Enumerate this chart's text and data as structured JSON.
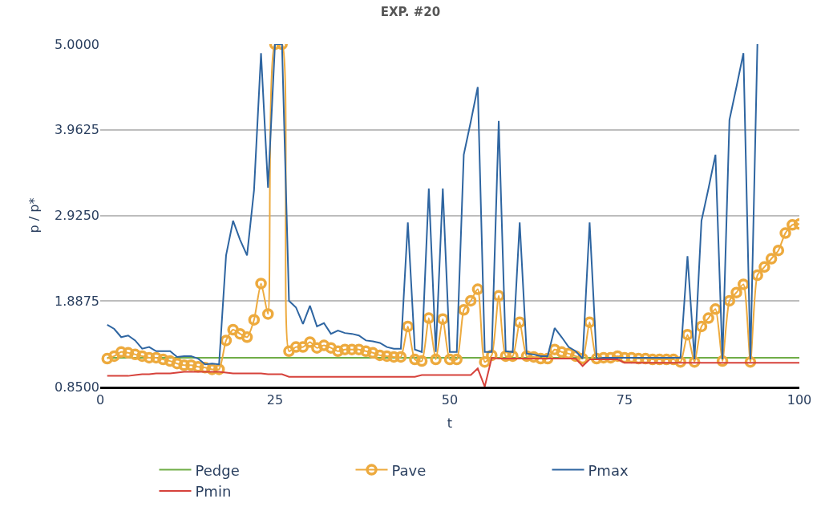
{
  "chart_data": {
    "type": "line",
    "title": "EXP. #20",
    "xlabel": "t",
    "ylabel": "p / p*",
    "x": [
      1,
      2,
      3,
      4,
      5,
      6,
      7,
      8,
      9,
      10,
      11,
      12,
      13,
      14,
      15,
      16,
      17,
      18,
      19,
      20,
      21,
      22,
      23,
      24,
      25,
      26,
      27,
      28,
      29,
      30,
      31,
      32,
      33,
      34,
      35,
      36,
      37,
      38,
      39,
      40,
      41,
      42,
      43,
      44,
      45,
      46,
      47,
      48,
      49,
      50,
      51,
      52,
      53,
      54,
      55,
      56,
      57,
      58,
      59,
      60,
      61,
      62,
      63,
      64,
      65,
      66,
      67,
      68,
      69,
      70,
      71,
      72,
      73,
      74,
      75,
      76,
      77,
      78,
      79,
      80,
      81,
      82,
      83,
      84,
      85,
      86,
      87,
      88,
      89,
      90,
      91,
      92,
      93,
      94,
      95,
      96,
      97,
      98,
      99,
      100
    ],
    "xlim": [
      0,
      100
    ],
    "xticks": [
      0,
      25,
      50,
      75,
      100
    ],
    "ylim": [
      0.85,
      5.0
    ],
    "yticks": [
      {
        "value": 0.85,
        "label": "0.8500"
      },
      {
        "value": 1.8875,
        "label": "1.8875"
      },
      {
        "value": 2.925,
        "label": "2.9250"
      },
      {
        "value": 3.9625,
        "label": "3.9625"
      },
      {
        "value": 5.0,
        "label": "5.0000"
      }
    ],
    "grid": "y",
    "legend": "bottom",
    "line_style": "solid",
    "series": [
      {
        "name": "Pedge",
        "color": "#70ad47",
        "marker": "none",
        "values": [
          1.2,
          1.2,
          1.2,
          1.2,
          1.2,
          1.2,
          1.2,
          1.2,
          1.2,
          1.2,
          1.2,
          1.2,
          1.2,
          1.2,
          1.2,
          1.2,
          1.2,
          1.2,
          1.2,
          1.2,
          1.2,
          1.2,
          1.2,
          1.2,
          1.2,
          1.2,
          1.2,
          1.2,
          1.2,
          1.2,
          1.2,
          1.2,
          1.2,
          1.2,
          1.2,
          1.2,
          1.2,
          1.2,
          1.2,
          1.2,
          1.2,
          1.2,
          1.2,
          1.2,
          1.2,
          1.2,
          1.2,
          1.2,
          1.2,
          1.2,
          1.2,
          1.2,
          1.2,
          1.2,
          1.2,
          1.2,
          1.2,
          1.2,
          1.2,
          1.2,
          1.2,
          1.2,
          1.2,
          1.2,
          1.2,
          1.2,
          1.2,
          1.2,
          1.2,
          1.2,
          1.2,
          1.2,
          1.2,
          1.2,
          1.2,
          1.2,
          1.2,
          1.2,
          1.2,
          1.2,
          1.2,
          1.2,
          1.2,
          1.2,
          1.2,
          1.2,
          1.2,
          1.2,
          1.2,
          1.2,
          1.2,
          1.2,
          1.2,
          1.2,
          1.2,
          1.2,
          1.2,
          1.2,
          1.2,
          1.2
        ]
      },
      {
        "name": "Pave",
        "color": "#edaa3e",
        "marker": "circle",
        "values": [
          1.19,
          1.22,
          1.27,
          1.26,
          1.24,
          1.22,
          1.2,
          1.2,
          1.18,
          1.16,
          1.13,
          1.11,
          1.11,
          1.09,
          1.08,
          1.06,
          1.06,
          1.41,
          1.54,
          1.49,
          1.45,
          1.66,
          2.1,
          1.73,
          5.0,
          5.0,
          1.28,
          1.33,
          1.33,
          1.39,
          1.32,
          1.35,
          1.32,
          1.28,
          1.3,
          1.3,
          1.3,
          1.28,
          1.26,
          1.23,
          1.22,
          1.21,
          1.21,
          1.58,
          1.18,
          1.16,
          1.68,
          1.18,
          1.67,
          1.18,
          1.18,
          1.78,
          1.89,
          2.03,
          1.15,
          1.23,
          1.95,
          1.22,
          1.22,
          1.63,
          1.22,
          1.21,
          1.19,
          1.19,
          1.3,
          1.27,
          1.25,
          1.22,
          1.19,
          1.63,
          1.19,
          1.2,
          1.2,
          1.22,
          1.2,
          1.2,
          1.19,
          1.19,
          1.18,
          1.18,
          1.18,
          1.18,
          1.15,
          1.48,
          1.15,
          1.58,
          1.68,
          1.79,
          1.16,
          1.89,
          1.99,
          2.09,
          1.15,
          2.2,
          2.3,
          2.4,
          2.5,
          2.71,
          2.81,
          2.82
        ]
      },
      {
        "name": "Pmax",
        "color": "#2e65a1",
        "marker": "none",
        "values": [
          1.6,
          1.55,
          1.45,
          1.47,
          1.41,
          1.31,
          1.33,
          1.28,
          1.28,
          1.28,
          1.21,
          1.22,
          1.22,
          1.19,
          1.12,
          1.13,
          1.12,
          2.44,
          2.86,
          2.63,
          2.44,
          3.23,
          4.89,
          3.26,
          5.0,
          5.0,
          1.89,
          1.81,
          1.61,
          1.83,
          1.58,
          1.62,
          1.49,
          1.53,
          1.5,
          1.49,
          1.47,
          1.41,
          1.4,
          1.38,
          1.33,
          1.31,
          1.31,
          2.84,
          1.3,
          1.27,
          3.25,
          1.27,
          3.25,
          1.27,
          1.27,
          3.66,
          4.06,
          4.48,
          1.27,
          1.27,
          4.07,
          1.28,
          1.27,
          2.84,
          1.25,
          1.24,
          1.22,
          1.22,
          1.56,
          1.45,
          1.33,
          1.28,
          1.19,
          2.84,
          1.19,
          1.2,
          1.2,
          1.2,
          1.2,
          1.2,
          1.2,
          1.2,
          1.2,
          1.2,
          1.2,
          1.2,
          1.2,
          2.43,
          1.18,
          2.86,
          3.25,
          3.66,
          1.18,
          4.08,
          4.48,
          4.89,
          1.18,
          5.0,
          null,
          null,
          null,
          null,
          null,
          null
        ]
      },
      {
        "name": "Pmin",
        "color": "#d6423b",
        "marker": "none",
        "values": [
          0.98,
          0.98,
          0.98,
          0.98,
          0.99,
          1.0,
          1.0,
          1.01,
          1.01,
          1.01,
          1.02,
          1.03,
          1.03,
          1.03,
          1.03,
          1.03,
          1.03,
          1.02,
          1.01,
          1.01,
          1.01,
          1.01,
          1.01,
          1.0,
          1.0,
          1.0,
          0.97,
          0.97,
          0.97,
          0.97,
          0.97,
          0.97,
          0.97,
          0.97,
          0.97,
          0.97,
          0.97,
          0.97,
          0.97,
          0.97,
          0.97,
          0.97,
          0.97,
          0.97,
          0.97,
          0.99,
          0.99,
          0.99,
          0.99,
          0.99,
          0.99,
          0.99,
          0.99,
          1.07,
          0.85,
          1.2,
          1.19,
          1.19,
          1.19,
          1.19,
          1.19,
          1.19,
          1.19,
          1.19,
          1.19,
          1.19,
          1.19,
          1.19,
          1.1,
          1.18,
          1.18,
          1.18,
          1.18,
          1.18,
          1.14,
          1.14,
          1.14,
          1.14,
          1.14,
          1.14,
          1.14,
          1.14,
          1.14,
          1.14,
          1.14,
          1.14,
          1.14,
          1.14,
          1.14,
          1.14,
          1.14,
          1.14,
          1.14,
          1.14,
          1.14,
          1.14,
          1.14,
          1.14,
          1.14,
          1.14
        ]
      }
    ]
  }
}
